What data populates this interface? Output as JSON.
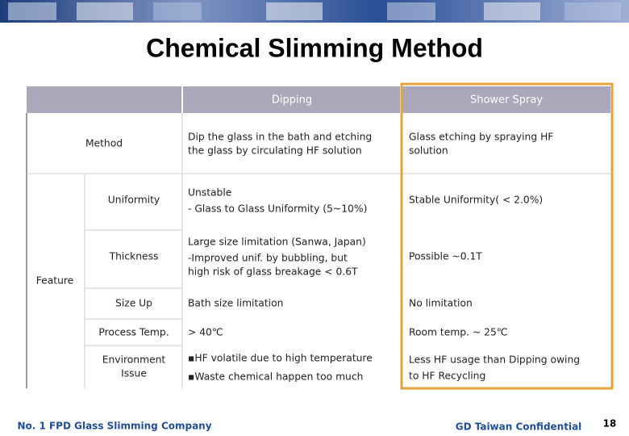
{
  "title": "Chemical Slimming Method",
  "table": {
    "columns": [
      "Dipping",
      "Shower Spray"
    ],
    "group": "Feature",
    "rows": [
      {
        "label": [
          "Method"
        ],
        "dipping": [
          "Dip the glass in the bath and etching",
          "the glass by circulating HF solution"
        ],
        "shower": [
          "Glass etching by spraying HF",
          "solution"
        ]
      },
      {
        "label": [
          "Uniformity"
        ],
        "dipping": [
          "Unstable",
          "- Glass to Glass Uniformity (5~10%)"
        ],
        "shower": [
          "Stable Uniformity( < 2.0%)"
        ]
      },
      {
        "label": [
          "Thickness"
        ],
        "dipping": [
          "Large size limitation (Sanwa, Japan)",
          "-Improved unif. by bubbling, but",
          "high risk of glass breakage < 0.6T"
        ],
        "shower": [
          "Possible ~0.1T"
        ]
      },
      {
        "label": [
          "Size Up"
        ],
        "dipping": [
          "Bath size limitation"
        ],
        "shower": [
          "No limitation"
        ]
      },
      {
        "label": [
          "Process Temp."
        ],
        "dipping": [
          "> 40℃"
        ],
        "shower": [
          "Room temp. ~ 25℃"
        ]
      },
      {
        "label": [
          "Environment",
          "Issue"
        ],
        "dipping": [
          "▪HF volatile due to high temperature",
          "▪Waste chemical happen too much"
        ],
        "shower": [
          "Less HF usage than Dipping owing",
          "to HF Recycling"
        ]
      }
    ]
  },
  "footer": {
    "left": "No. 1 FPD Glass Slimming Company",
    "center": "GD Taiwan Confidential",
    "page": "18"
  }
}
